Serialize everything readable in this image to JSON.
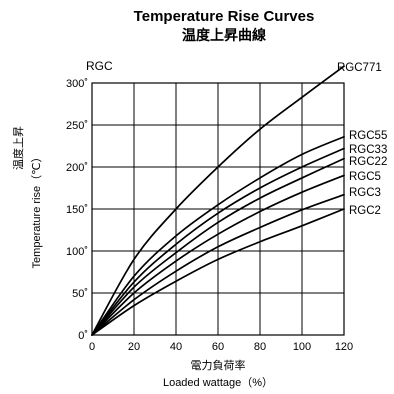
{
  "chart_data": {
    "type": "line",
    "title": "Temperature Rise Curves",
    "subtitle": "温度上昇曲線",
    "series_group_label": "RGC",
    "xlabel_jp": "電力負荷率",
    "xlabel_en": "Loaded wattage（%）",
    "ylabel_jp": "温度上昇",
    "ylabel_en": "Temperature rise（℃）",
    "xlim": [
      0,
      120
    ],
    "ylim": [
      0,
      300
    ],
    "x_ticks": [
      "0",
      "20",
      "40",
      "60",
      "80",
      "100",
      "120"
    ],
    "y_ticks": [
      "0˚",
      "50˚",
      "100˚",
      "150˚",
      "200˚",
      "250˚",
      "300˚"
    ],
    "grid": true,
    "x": [
      0,
      20,
      40,
      60,
      80,
      100,
      120
    ],
    "series": [
      {
        "name": "RGC771",
        "values": [
          0,
          90,
          150,
          200,
          245,
          283,
          320
        ]
      },
      {
        "name": "RGC55",
        "values": [
          0,
          70,
          118,
          155,
          187,
          215,
          236
        ]
      },
      {
        "name": "RGC33",
        "values": [
          0,
          63,
          108,
          145,
          175,
          200,
          222
        ]
      },
      {
        "name": "RGC22",
        "values": [
          0,
          57,
          98,
          134,
          163,
          187,
          210
        ]
      },
      {
        "name": "RGC5",
        "values": [
          0,
          50,
          88,
          120,
          147,
          170,
          190
        ]
      },
      {
        "name": "RGC3",
        "values": [
          0,
          42,
          76,
          105,
          128,
          149,
          167
        ]
      },
      {
        "name": "RGC2",
        "values": [
          0,
          35,
          64,
          90,
          111,
          130,
          150
        ]
      }
    ]
  }
}
